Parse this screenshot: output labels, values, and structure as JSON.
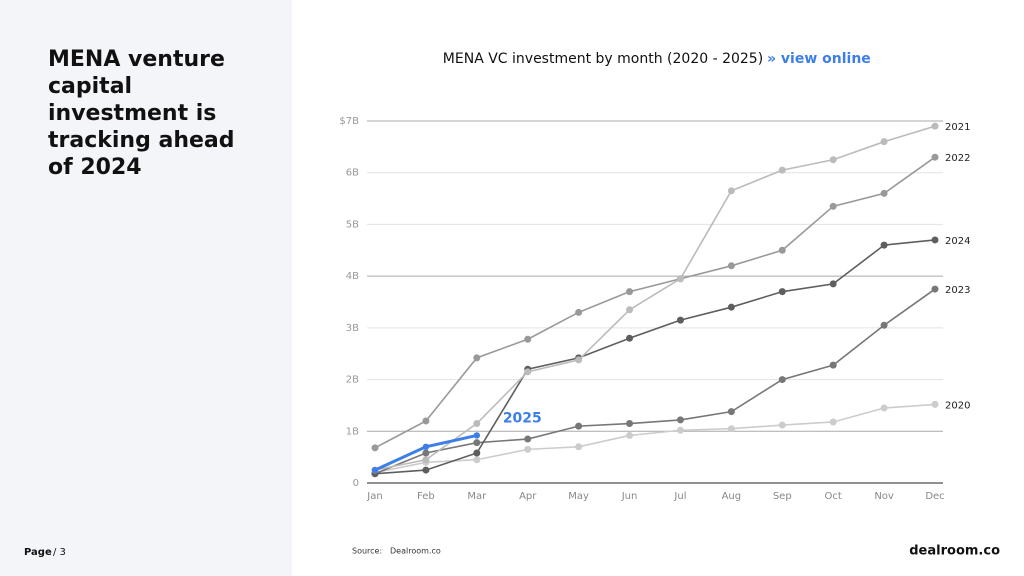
{
  "heading": "MENA venture capital investment is tracking ahead of 2024",
  "footer": {
    "page_label": "Page",
    "page_number": "/ 3",
    "source_label": "Source:",
    "source": "Dealroom.co",
    "logo": "dealroom.co"
  },
  "chart_data": {
    "type": "line",
    "title": "MENA VC investment by month (2020 - 2025)",
    "link": "» view online",
    "categories": [
      "Jan",
      "Feb",
      "Mar",
      "Apr",
      "May",
      "Jun",
      "Jul",
      "Aug",
      "Sep",
      "Oct",
      "Nov",
      "Dec"
    ],
    "ylim": [
      0,
      7
    ],
    "yticks": [
      0,
      {
        "value": 1,
        "label": "1B"
      },
      {
        "value": 2,
        "label": "2B"
      },
      {
        "value": 3,
        "label": "3B"
      },
      {
        "value": 4,
        "label": "4B"
      },
      {
        "value": 5,
        "label": "5B"
      },
      {
        "value": 6,
        "label": "6B"
      },
      {
        "value": 7,
        "label": "$7B"
      }
    ],
    "grid": true,
    "series": [
      {
        "name": "2020",
        "color": "#cccccc",
        "values": [
          0.2,
          0.4,
          0.45,
          0.65,
          0.7,
          0.92,
          1.02,
          1.05,
          1.12,
          1.18,
          1.45,
          1.52
        ]
      },
      {
        "name": "2023",
        "color": "#777777",
        "values": [
          0.18,
          0.58,
          0.78,
          0.85,
          1.1,
          1.15,
          1.22,
          1.38,
          2.0,
          2.28,
          3.05,
          3.75
        ]
      },
      {
        "name": "2024",
        "color": "#5e5e5e",
        "values": [
          0.18,
          0.25,
          0.58,
          2.2,
          2.42,
          2.8,
          3.15,
          3.4,
          3.7,
          3.85,
          4.6,
          4.7
        ]
      },
      {
        "name": "2022",
        "color": "#999999",
        "values": [
          0.68,
          1.2,
          2.42,
          2.78,
          3.3,
          3.7,
          3.95,
          4.2,
          4.5,
          5.35,
          5.6,
          6.3
        ]
      },
      {
        "name": "2021",
        "color": "#bbbbbb",
        "values": [
          0.25,
          0.45,
          1.15,
          2.15,
          2.38,
          3.35,
          3.95,
          5.65,
          6.05,
          6.25,
          6.6,
          6.9
        ]
      },
      {
        "name": "2025",
        "color": "#3d7fe6",
        "values": [
          0.25,
          0.7,
          0.92,
          null,
          null,
          null,
          null,
          null,
          null,
          null,
          null,
          null
        ]
      }
    ]
  }
}
